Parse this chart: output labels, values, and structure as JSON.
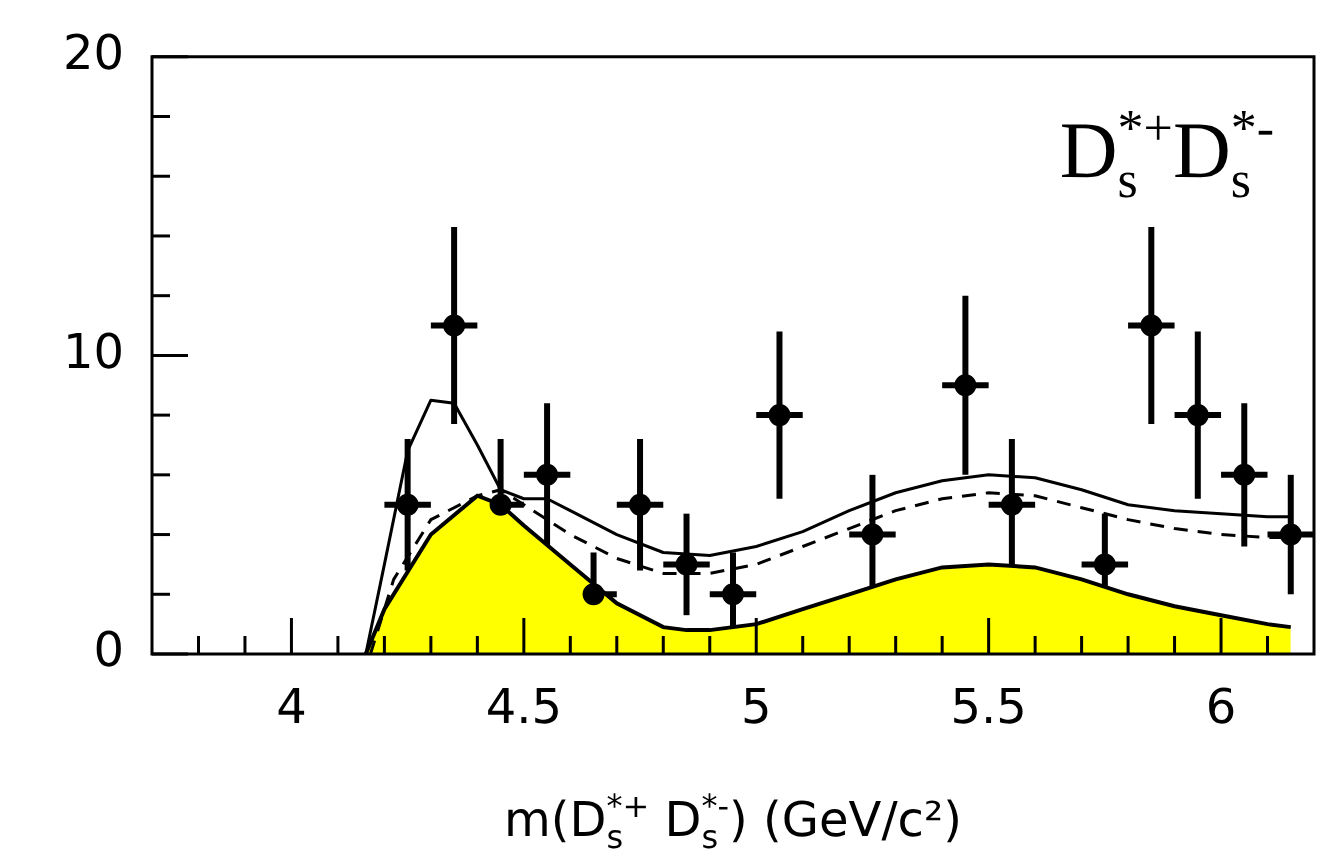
{
  "chart_data": {
    "type": "scatter",
    "xlabel": "m(D$^{*+}$$_{s}$ D$^{*-}$$_{s}$) (GeV/c²)",
    "annotations": [
      "D$_{s}$$^{*+}$D$_{s}$$^{*-}$"
    ],
    "xlim": [
      3.7,
      6.2
    ],
    "ylim": [
      0,
      20
    ],
    "xticks": [
      {
        "value": 3.8,
        "label": null
      },
      {
        "value": 3.9,
        "label": null
      },
      4,
      {
        "value": 4.1,
        "label": null
      },
      {
        "value": 4.2,
        "label": null
      },
      {
        "value": 4.3,
        "label": null
      },
      {
        "value": 4.4,
        "label": null
      },
      4.5,
      {
        "value": 4.6,
        "label": null
      },
      {
        "value": 4.7,
        "label": null
      },
      {
        "value": 4.8,
        "label": null
      },
      {
        "value": 4.9,
        "label": null
      },
      5,
      {
        "value": 5.1,
        "label": null
      },
      {
        "value": 5.2,
        "label": null
      },
      {
        "value": 5.3,
        "label": null
      },
      {
        "value": 5.4,
        "label": null
      },
      5.5,
      {
        "value": 5.6,
        "label": null
      },
      {
        "value": 5.7,
        "label": null
      },
      {
        "value": 5.8,
        "label": null
      },
      {
        "value": 5.9,
        "label": null
      },
      6,
      {
        "value": 6.1,
        "label": null
      }
    ],
    "yticks": [
      0,
      {
        "value": 2,
        "label": null
      },
      {
        "value": 4,
        "label": null
      },
      {
        "value": 6,
        "label": null
      },
      {
        "value": 8,
        "label": null
      },
      10,
      {
        "value": 12,
        "label": null
      },
      {
        "value": 14,
        "label": null
      },
      {
        "value": 16,
        "label": null
      },
      {
        "value": 18,
        "label": null
      },
      20
    ],
    "grid": false,
    "legend": false,
    "series": [
      {
        "type": "area",
        "color": "#ffff00",
        "x": [
          4.16,
          4.2,
          4.3,
          4.4,
          4.45,
          4.5,
          4.6,
          4.7,
          4.8,
          4.85,
          4.9,
          5.0,
          5.1,
          5.2,
          5.3,
          5.4,
          5.5,
          5.6,
          5.7,
          5.8,
          5.9,
          6.0,
          6.1,
          6.15
        ],
        "values": [
          0,
          1.5,
          4.0,
          5.3,
          5.0,
          4.3,
          3.0,
          1.7,
          0.9,
          0.8,
          0.8,
          1.0,
          1.5,
          2.0,
          2.5,
          2.9,
          3.0,
          2.9,
          2.5,
          2.0,
          1.6,
          1.3,
          1.0,
          0.9
        ]
      },
      {
        "type": "line",
        "color": "#000000",
        "line_style": "dashed",
        "marker": "none",
        "x": [
          4.17,
          4.22,
          4.3,
          4.4,
          4.45,
          4.5,
          4.6,
          4.7,
          4.8,
          4.9,
          5.0,
          5.1,
          5.2,
          5.3,
          5.4,
          5.5,
          5.6,
          5.7,
          5.8,
          5.9,
          6.0,
          6.1,
          6.15
        ],
        "values": [
          0,
          2.5,
          4.5,
          5.3,
          5.5,
          5.0,
          4.0,
          3.2,
          2.7,
          2.7,
          3.0,
          3.6,
          4.2,
          4.8,
          5.2,
          5.4,
          5.3,
          4.9,
          4.5,
          4.2,
          4.0,
          3.9,
          3.9
        ]
      },
      {
        "type": "line",
        "color": "#000000",
        "line_style": "solid",
        "marker": "none",
        "x": [
          4.16,
          4.2,
          4.25,
          4.3,
          4.35,
          4.4,
          4.45,
          4.5,
          4.55,
          4.6,
          4.7,
          4.8,
          4.9,
          5.0,
          5.1,
          5.2,
          5.3,
          5.4,
          5.5,
          5.6,
          5.7,
          5.8,
          5.9,
          6.0,
          6.1,
          6.15
        ],
        "values": [
          0,
          3,
          6.8,
          8.5,
          8.4,
          7.0,
          5.5,
          5.2,
          5.2,
          4.8,
          4.0,
          3.4,
          3.3,
          3.6,
          4.1,
          4.8,
          5.4,
          5.8,
          6.0,
          5.9,
          5.5,
          5.0,
          4.8,
          4.7,
          4.6,
          4.6
        ]
      },
      {
        "color": "#000000",
        "marker": "circle",
        "x": [
          4.25,
          4.35,
          4.45,
          4.55,
          4.65,
          4.75,
          4.85,
          4.95,
          5.05,
          5.25,
          5.45,
          5.55,
          5.75,
          5.85,
          5.95,
          6.05,
          6.15
        ],
        "values": [
          5,
          11,
          5,
          6,
          2,
          5,
          3,
          2,
          8,
          4,
          9,
          5,
          3,
          11,
          8,
          6,
          4
        ],
        "errors": [
          2.2,
          3.3,
          2.2,
          2.4,
          1.4,
          2.2,
          1.7,
          1.4,
          2.8,
          2.0,
          3.0,
          2.2,
          1.7,
          3.3,
          2.8,
          2.4,
          2.0
        ],
        "xerrors": [
          0.05,
          0.05,
          0.05,
          0.05,
          0.05,
          0.05,
          0.05,
          0.05,
          0.05,
          0.05,
          0.05,
          0.05,
          0.05,
          0.05,
          0.05,
          0.05,
          0.05
        ]
      }
    ]
  }
}
